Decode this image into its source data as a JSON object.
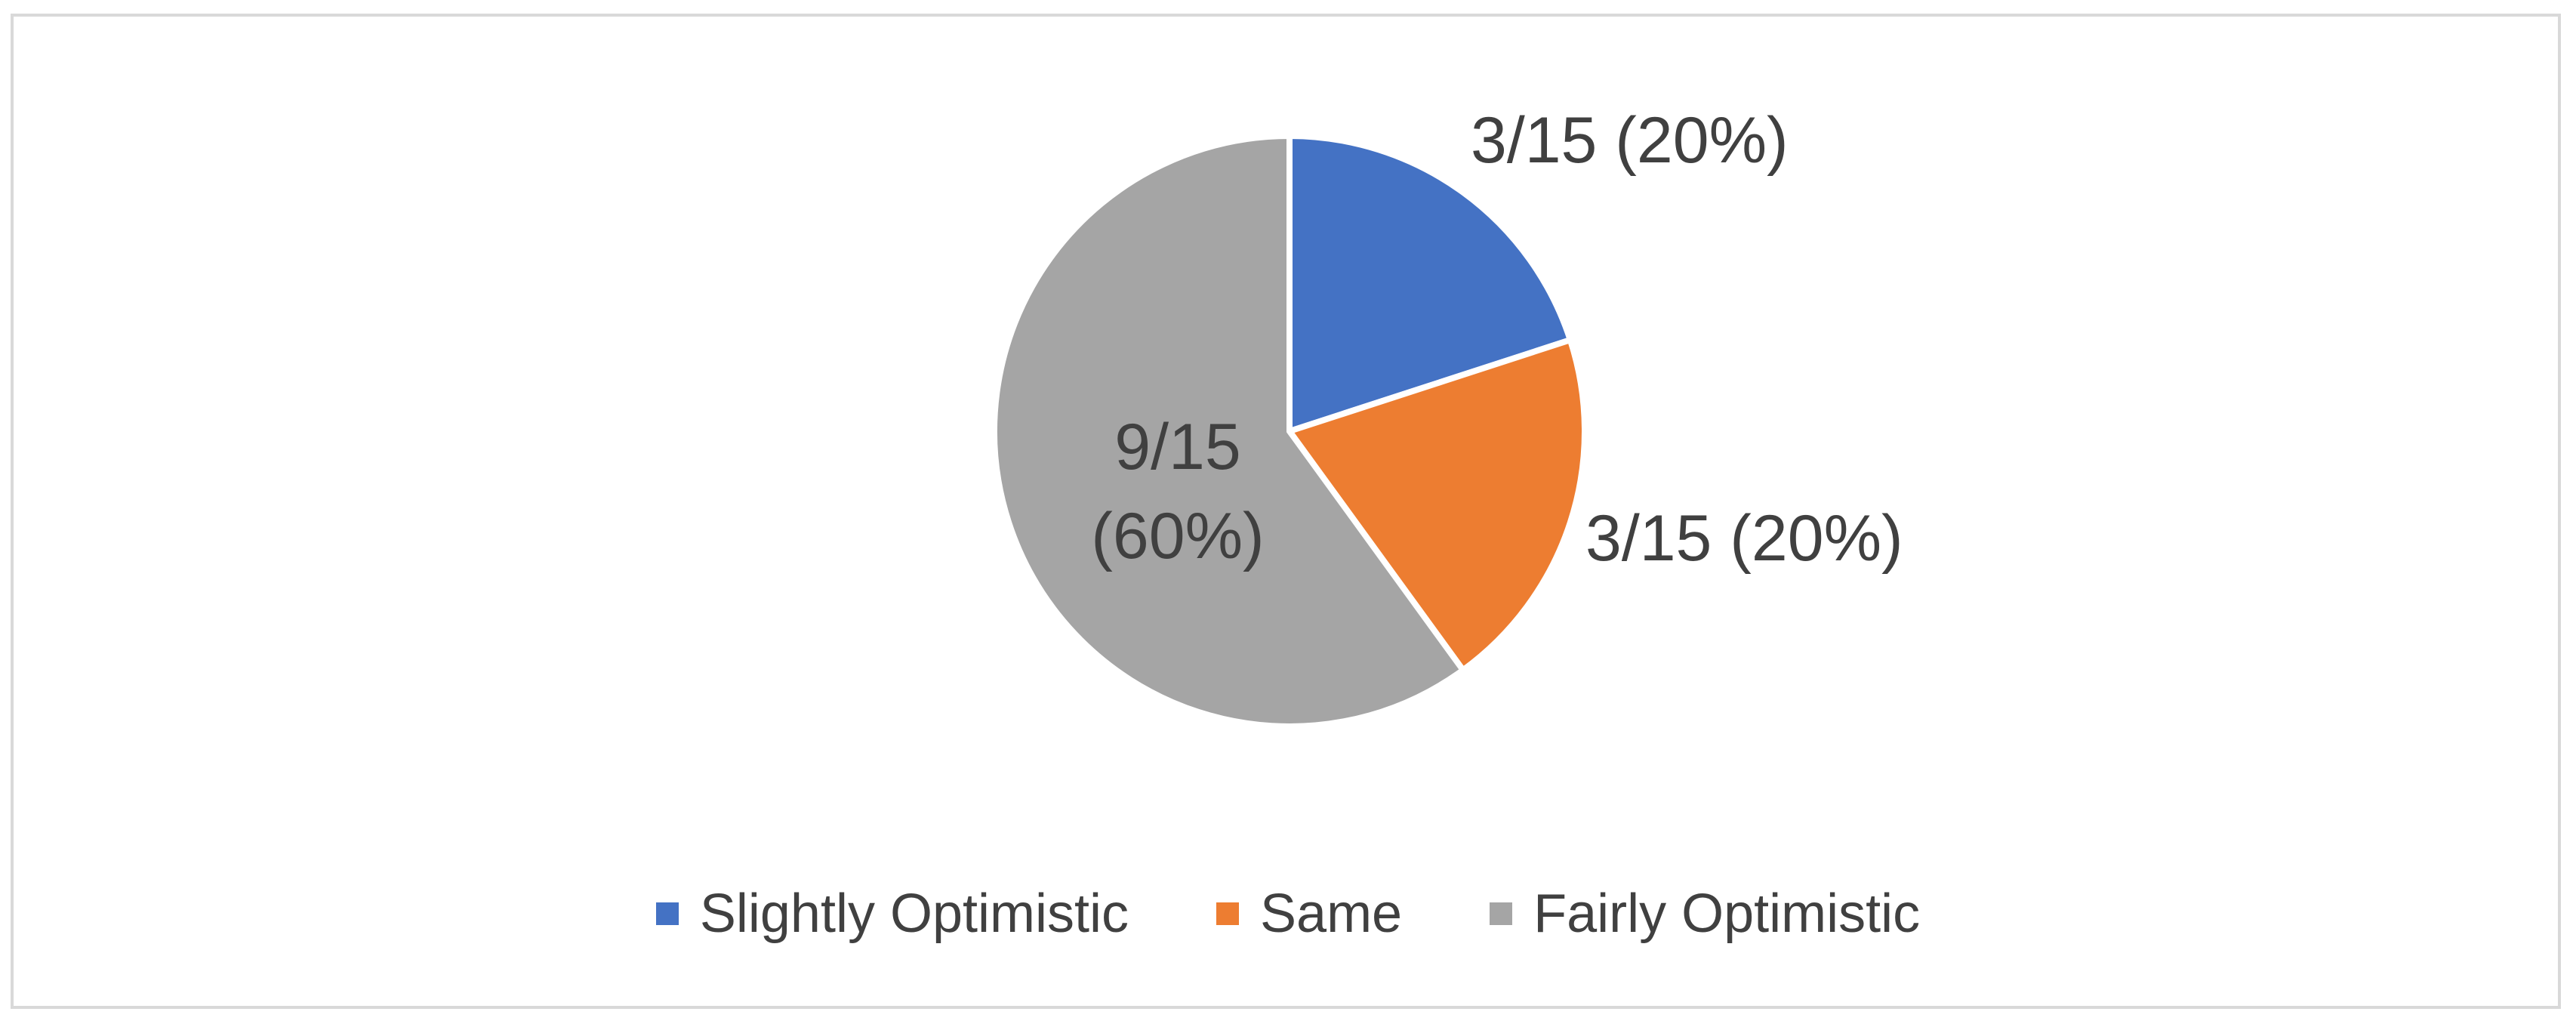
{
  "chart_data": {
    "type": "pie",
    "title": "",
    "start_angle_deg": 0,
    "direction": "clockwise",
    "legend_position": "bottom",
    "slices": [
      {
        "name": "Slightly Optimistic",
        "value": 3,
        "label_lines": [
          "3/15 (20%)"
        ],
        "color": "#4472C4"
      },
      {
        "name": "Same",
        "value": 3,
        "label_lines": [
          "3/15 (20%)"
        ],
        "color": "#ED7D31"
      },
      {
        "name": "Fairly Optimistic",
        "value": 9,
        "label_lines": [
          "9/15",
          "(60%)"
        ],
        "color": "#A5A5A5"
      }
    ]
  },
  "legend": {
    "items": [
      {
        "label": "Slightly Optimistic",
        "color": "#4472C4"
      },
      {
        "label": "Same",
        "color": "#ED7D31"
      },
      {
        "label": "Fairly Optimistic",
        "color": "#A5A5A5"
      }
    ]
  }
}
